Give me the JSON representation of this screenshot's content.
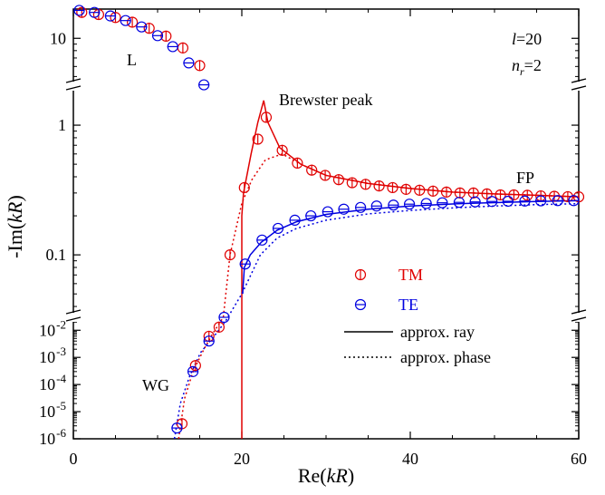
{
  "chart_data": {
    "type": "scatter",
    "xlabel": "Re(kR)",
    "ylabel": "-Im(kR)",
    "xlim": [
      0,
      60
    ],
    "y_axis": "log scale with axis breaks between panels",
    "y_panels": [
      {
        "id": "top",
        "range": [
          4.2,
          17
        ],
        "scale": "log",
        "tick_values": [
          10
        ],
        "tick_labels": [
          "10"
        ]
      },
      {
        "id": "middle",
        "range": [
          0.033,
          2.0
        ],
        "scale": "log",
        "tick_values": [
          1,
          0.1
        ],
        "tick_labels": [
          "1",
          "0.1"
        ]
      },
      {
        "id": "bottom",
        "range": [
          1e-06,
          0.03
        ],
        "scale": "log",
        "tick_values": [
          0.01,
          0.001,
          0.0001,
          1e-05,
          1e-06
        ],
        "tick_labels": [
          "10-2",
          "10-3",
          "10-4",
          "10-5",
          "10-6"
        ]
      }
    ],
    "x_ticks": [
      0,
      20,
      40,
      60
    ],
    "x_tick_labels": [
      "0",
      "20",
      "40",
      "60"
    ],
    "series": [
      {
        "name": "TM",
        "marker": "circle-vertical-bar",
        "color": "#e00000",
        "points": [
          [
            1.0,
            16.0
          ],
          [
            3.0,
            15.4
          ],
          [
            5.0,
            14.6
          ],
          [
            7.0,
            13.4
          ],
          [
            9.0,
            12.0
          ],
          [
            11.0,
            10.4
          ],
          [
            13.0,
            8.4
          ],
          [
            15.0,
            6.1
          ],
          [
            18.6,
            0.1
          ],
          [
            20.3,
            0.33
          ],
          [
            21.9,
            0.78
          ],
          [
            22.9,
            1.15
          ],
          [
            24.8,
            0.64
          ],
          [
            26.6,
            0.51
          ],
          [
            28.3,
            0.45
          ],
          [
            29.9,
            0.41
          ],
          [
            31.5,
            0.38
          ],
          [
            33.1,
            0.36
          ],
          [
            34.7,
            0.35
          ],
          [
            36.3,
            0.34
          ],
          [
            37.9,
            0.33
          ],
          [
            39.5,
            0.32
          ],
          [
            41.1,
            0.315
          ],
          [
            42.7,
            0.31
          ],
          [
            44.3,
            0.305
          ],
          [
            45.9,
            0.3
          ],
          [
            47.5,
            0.3
          ],
          [
            49.1,
            0.295
          ],
          [
            50.7,
            0.29
          ],
          [
            52.3,
            0.29
          ],
          [
            53.9,
            0.288
          ],
          [
            55.5,
            0.285
          ],
          [
            57.1,
            0.283
          ],
          [
            58.7,
            0.281
          ],
          [
            60.0,
            0.28
          ],
          [
            12.9,
            3.6e-06
          ],
          [
            14.5,
            0.0005
          ],
          [
            16.1,
            0.006
          ],
          [
            17.3,
            0.013
          ]
        ]
      },
      {
        "name": "TE",
        "marker": "circle-horizontal-bar",
        "color": "#0000e0",
        "points": [
          [
            0.7,
            16.6
          ],
          [
            2.5,
            16.0
          ],
          [
            4.4,
            15.0
          ],
          [
            6.2,
            13.8
          ],
          [
            8.1,
            12.3
          ],
          [
            10.0,
            10.5
          ],
          [
            11.8,
            8.6
          ],
          [
            13.7,
            6.4
          ],
          [
            15.5,
            4.3
          ],
          [
            20.4,
            0.085
          ],
          [
            22.4,
            0.13
          ],
          [
            24.3,
            0.16
          ],
          [
            26.3,
            0.185
          ],
          [
            28.2,
            0.2
          ],
          [
            30.2,
            0.215
          ],
          [
            32.1,
            0.225
          ],
          [
            34.1,
            0.232
          ],
          [
            36.0,
            0.238
          ],
          [
            38.0,
            0.242
          ],
          [
            39.9,
            0.246
          ],
          [
            41.9,
            0.249
          ],
          [
            43.8,
            0.252
          ],
          [
            45.8,
            0.254
          ],
          [
            47.7,
            0.256
          ],
          [
            49.7,
            0.258
          ],
          [
            51.6,
            0.259
          ],
          [
            53.6,
            0.26
          ],
          [
            55.5,
            0.261
          ],
          [
            57.5,
            0.262
          ],
          [
            59.4,
            0.262
          ],
          [
            12.3,
            2.5e-06
          ],
          [
            14.2,
            0.0003
          ],
          [
            16.1,
            0.004
          ],
          [
            17.9,
            0.03
          ]
        ]
      }
    ],
    "legend": {
      "placement": "center-right",
      "entries": [
        {
          "label": "TM",
          "color": "#e00000",
          "marker": "circle-vertical-bar"
        },
        {
          "label": "TE",
          "color": "#0000e0",
          "marker": "circle-horizontal-bar"
        },
        {
          "label": "approx. ray",
          "style": "solid line"
        },
        {
          "label": "approx. phase",
          "style": "dotted line"
        }
      ]
    },
    "annotations": [
      {
        "text": "L"
      },
      {
        "text": "Brewster peak"
      },
      {
        "text": "FP"
      },
      {
        "text": "WG"
      },
      {
        "text": "l=20"
      },
      {
        "text": "nr=2"
      }
    ]
  }
}
